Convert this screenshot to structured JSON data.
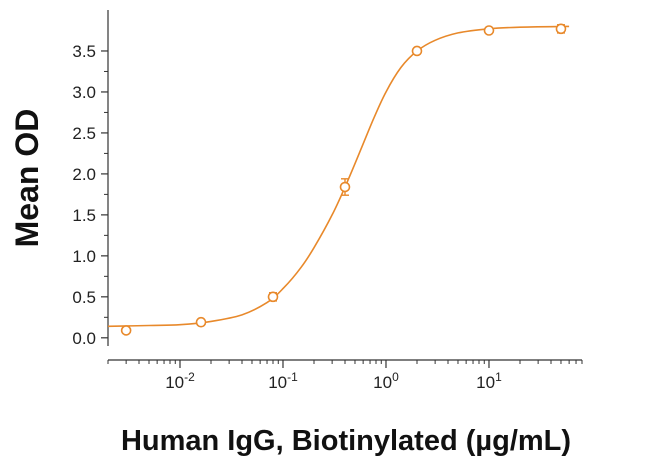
{
  "chart_data": {
    "type": "scatter",
    "xlabel": "Human IgG, Biotinylated (µg/mL)",
    "ylabel": "Mean OD",
    "x_scale": "log",
    "xlim": [
      0.002,
      80
    ],
    "ylim": [
      -0.1,
      4.0
    ],
    "grid": false,
    "accent_color": "#E8892B",
    "y_ticks": [
      "0.0",
      "0.5",
      "1.0",
      "1.5",
      "2.0",
      "2.5",
      "3.0",
      "3.5"
    ],
    "x_ticks": [
      {
        "base": "10",
        "exp": "-2"
      },
      {
        "base": "10",
        "exp": "-1"
      },
      {
        "base": "10",
        "exp": "0"
      },
      {
        "base": "10",
        "exp": "1"
      }
    ],
    "series": [
      {
        "x": [
          0.003,
          0.016,
          0.08,
          0.4,
          2.0,
          10.0,
          50.0
        ],
        "y": [
          0.09,
          0.19,
          0.5,
          1.84,
          3.5,
          3.75,
          3.77
        ],
        "y_err": [
          0.02,
          0.02,
          0.05,
          0.1,
          0.03,
          0.03,
          0.05
        ]
      }
    ],
    "fit_curve": [
      {
        "x": 0.002,
        "y": 0.14
      },
      {
        "x": 0.005,
        "y": 0.15
      },
      {
        "x": 0.01,
        "y": 0.16
      },
      {
        "x": 0.02,
        "y": 0.2
      },
      {
        "x": 0.04,
        "y": 0.28
      },
      {
        "x": 0.07,
        "y": 0.43
      },
      {
        "x": 0.1,
        "y": 0.6
      },
      {
        "x": 0.15,
        "y": 0.86
      },
      {
        "x": 0.2,
        "y": 1.1
      },
      {
        "x": 0.3,
        "y": 1.5
      },
      {
        "x": 0.4,
        "y": 1.84
      },
      {
        "x": 0.55,
        "y": 2.25
      },
      {
        "x": 0.75,
        "y": 2.66
      },
      {
        "x": 1.0,
        "y": 3.0
      },
      {
        "x": 1.4,
        "y": 3.3
      },
      {
        "x": 2.0,
        "y": 3.5
      },
      {
        "x": 3.0,
        "y": 3.63
      },
      {
        "x": 5.0,
        "y": 3.72
      },
      {
        "x": 10.0,
        "y": 3.77
      },
      {
        "x": 20.0,
        "y": 3.79
      },
      {
        "x": 60.0,
        "y": 3.8
      }
    ]
  }
}
